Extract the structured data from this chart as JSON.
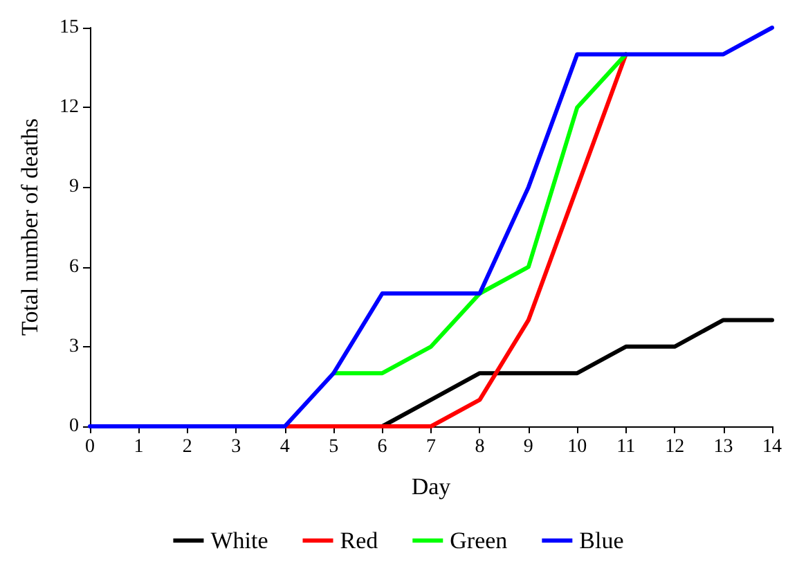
{
  "chart_data": {
    "type": "line",
    "xlabel": "Day",
    "ylabel": "Total number of deaths",
    "x": [
      0,
      1,
      2,
      3,
      4,
      5,
      6,
      7,
      8,
      9,
      10,
      11,
      12,
      13,
      14
    ],
    "xlim": [
      0,
      14
    ],
    "xticks": [
      0,
      1,
      2,
      3,
      4,
      5,
      6,
      7,
      8,
      9,
      10,
      11,
      12,
      13,
      14
    ],
    "ylim": [
      0,
      15
    ],
    "yticks": [
      0,
      3,
      6,
      9,
      12,
      15
    ],
    "grid": false,
    "legend": "bottom",
    "marker": "none",
    "line_style": "solid",
    "series": [
      {
        "name": "White",
        "color": "#000000",
        "values": [
          null,
          null,
          null,
          null,
          null,
          null,
          0,
          1,
          2,
          2,
          2,
          3,
          3,
          4,
          4
        ]
      },
      {
        "name": "Red",
        "color": "#ff0000",
        "values": [
          null,
          null,
          null,
          null,
          0,
          0,
          0,
          0,
          1,
          4,
          9,
          14,
          null,
          null,
          null
        ]
      },
      {
        "name": "Green",
        "color": "#00ff00",
        "values": [
          null,
          null,
          null,
          null,
          null,
          2,
          2,
          3,
          5,
          6,
          12,
          14,
          null,
          null,
          null
        ]
      },
      {
        "name": "Blue",
        "color": "#0000ff",
        "values": [
          0,
          0,
          0,
          0,
          0,
          2,
          5,
          5,
          5,
          9,
          14,
          14,
          14,
          14,
          15
        ]
      }
    ]
  }
}
